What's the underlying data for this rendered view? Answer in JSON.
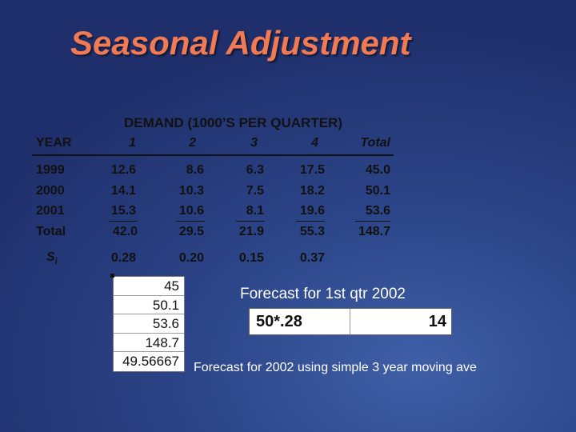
{
  "title": "Seasonal Adjustment",
  "table": {
    "group_header": "DEMAND (1000’S PER QUARTER)",
    "year_header": "YEAR",
    "quarter_headers": [
      "1",
      "2",
      "3",
      "4"
    ],
    "total_header": "Total",
    "rows": [
      {
        "year": "1999",
        "q": [
          "12.6",
          "8.6",
          "6.3",
          "17.5"
        ],
        "total": "45.0"
      },
      {
        "year": "2000",
        "q": [
          "14.1",
          "10.3",
          "7.5",
          "18.2"
        ],
        "total": "50.1"
      },
      {
        "year": "2001",
        "q": [
          "15.3",
          "10.6",
          "8.1",
          "19.6"
        ],
        "total": "53.6"
      }
    ],
    "total_row": {
      "label": "Total",
      "q": [
        "42.0",
        "29.5",
        "21.9",
        "55.3"
      ],
      "total": "148.7"
    },
    "si_label": "S",
    "si_subscript": "i",
    "si_values": [
      "0.28",
      "0.20",
      "0.15",
      "0.37"
    ]
  },
  "sheet_values": [
    "45",
    "50.1",
    "53.6",
    "148.7",
    "49.56667"
  ],
  "forecast_q1": {
    "label": "Forecast for 1st qtr 2002",
    "formula": "50*.28",
    "result": "14"
  },
  "forecast_year_label": "Forecast for 2002 using simple 3 year moving ave"
}
